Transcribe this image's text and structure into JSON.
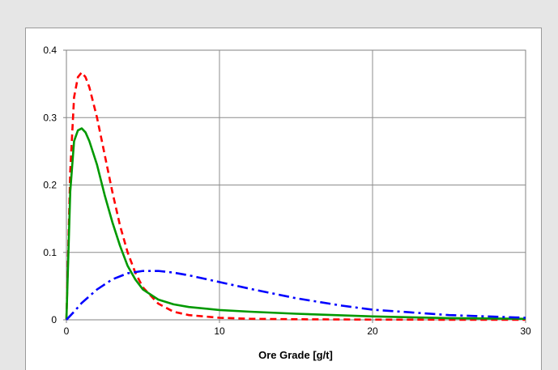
{
  "chart_data": {
    "type": "line",
    "title": "",
    "xlabel": "Ore Grade [g/t]",
    "ylabel": "",
    "xlim": [
      0,
      30
    ],
    "ylim": [
      0,
      0.4
    ],
    "x_ticks": [
      0,
      10,
      20,
      30
    ],
    "y_ticks": [
      0,
      0.1,
      0.2,
      0.3,
      0.4
    ],
    "x_tick_labels": [
      "0",
      "10",
      "20",
      "30"
    ],
    "y_tick_labels": [
      "0",
      "0.1",
      "0.2",
      "0.3",
      "0.4"
    ],
    "grid": true,
    "series": [
      {
        "color": "#ff0000",
        "style": "dashed",
        "x": [
          0,
          0.25,
          0.5,
          0.75,
          1,
          1.25,
          1.5,
          2,
          2.5,
          3,
          3.5,
          4,
          4.5,
          5,
          6,
          7,
          8,
          10,
          12,
          15,
          20,
          25,
          30
        ],
        "y": [
          0,
          0.22,
          0.33,
          0.36,
          0.367,
          0.36,
          0.345,
          0.3,
          0.245,
          0.19,
          0.14,
          0.1,
          0.07,
          0.048,
          0.024,
          0.012,
          0.007,
          0.003,
          0.0015,
          0.0008,
          0.0003,
          0.0001,
          0
        ]
      },
      {
        "color": "#009900",
        "style": "solid",
        "x": [
          0,
          0.25,
          0.5,
          0.75,
          1,
          1.25,
          1.5,
          2,
          2.5,
          3,
          3.5,
          4,
          4.5,
          5,
          6,
          7,
          8,
          10,
          12,
          15,
          20,
          25,
          30
        ],
        "y": [
          0,
          0.19,
          0.265,
          0.281,
          0.284,
          0.278,
          0.265,
          0.23,
          0.185,
          0.145,
          0.11,
          0.08,
          0.06,
          0.045,
          0.03,
          0.023,
          0.019,
          0.0145,
          0.012,
          0.009,
          0.005,
          0.0025,
          0.0015
        ]
      },
      {
        "color": "#0000ff",
        "style": "dashdot",
        "x": [
          0,
          0.5,
          1,
          2,
          3,
          4,
          5,
          6,
          7,
          8,
          10,
          12,
          15,
          18,
          20,
          25,
          30
        ],
        "y": [
          0,
          0.012,
          0.025,
          0.045,
          0.06,
          0.069,
          0.0725,
          0.0725,
          0.07,
          0.066,
          0.056,
          0.046,
          0.032,
          0.021,
          0.015,
          0.007,
          0.003
        ]
      }
    ]
  }
}
